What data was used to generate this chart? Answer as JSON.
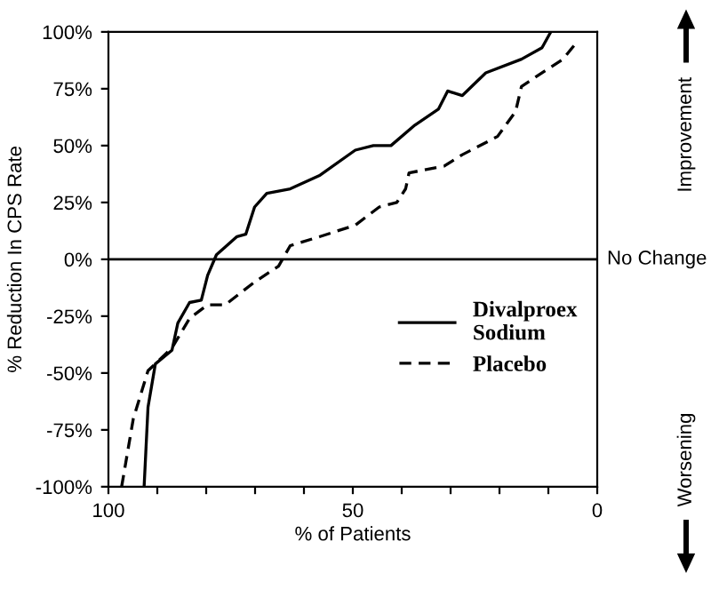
{
  "chart_data": {
    "type": "line",
    "xlabel": "% of Patients",
    "ylabel": "% Reduction In CPS Rate",
    "xlim": [
      100,
      0
    ],
    "xticks": [
      100,
      {
        "value": 90,
        "label": null
      },
      {
        "value": 80,
        "label": null
      },
      {
        "value": 70,
        "label": null
      },
      {
        "value": 60,
        "label": null
      },
      50,
      {
        "value": 40,
        "label": null
      },
      {
        "value": 30,
        "label": null
      },
      {
        "value": 20,
        "label": null
      },
      {
        "value": 10,
        "label": null
      },
      0
    ],
    "ylim": [
      -100,
      100
    ],
    "yticks": [
      {
        "value": -100,
        "label": "-100%"
      },
      {
        "value": -75,
        "label": "-75%"
      },
      {
        "value": -50,
        "label": "-50%"
      },
      {
        "value": -25,
        "label": "-25%"
      },
      {
        "value": 0,
        "label": "0%"
      },
      {
        "value": 25,
        "label": "25%"
      },
      {
        "value": 50,
        "label": "50%"
      },
      {
        "value": 75,
        "label": "75%"
      },
      {
        "value": 100,
        "label": "100%"
      }
    ],
    "grid": false,
    "legend": "bottom right",
    "marker": "none",
    "ref_lines": [
      {
        "axis": "y",
        "value": 0,
        "label": "No Change",
        "color": "#000000"
      }
    ],
    "annotations": [
      "Improvement",
      "Worsening"
    ],
    "series": [
      {
        "name": "Divalproex\nSodium",
        "color": "#000000",
        "line_style": "solid",
        "x": [
          92.7,
          91.9,
          90.4,
          87.0,
          85.8,
          83.4,
          81.0,
          79.7,
          77.9,
          73.7,
          71.9,
          70.1,
          67.6,
          62.8,
          56.7,
          49.5,
          45.8,
          42.2,
          37.3,
          32.5,
          30.6,
          27.6,
          22.8,
          15.5,
          11.3,
          9.5
        ],
        "values": [
          -100,
          -65,
          -46,
          -40,
          -28,
          -19,
          -18,
          -7,
          2,
          10,
          11,
          23,
          29,
          31,
          37,
          48,
          50,
          50,
          59,
          66,
          74,
          72,
          82,
          88,
          93,
          100
        ]
      },
      {
        "name": "Placebo",
        "color": "#000000",
        "line_style": "dashed",
        "x": [
          97.3,
          94.9,
          91.9,
          87.0,
          83.4,
          79.7,
          76.1,
          70.1,
          65.2,
          62.8,
          56.7,
          49.5,
          44.6,
          41.0,
          39.2,
          38.5,
          31.3,
          27.6,
          20.4,
          16.7,
          15.5,
          10.6,
          7.0,
          4.0
        ],
        "values": [
          -100,
          -70,
          -49,
          -39,
          -26,
          -20,
          -20,
          -10,
          -3,
          6,
          10,
          15,
          23,
          25,
          31,
          38,
          41,
          46,
          54,
          65,
          76,
          83,
          88,
          96
        ]
      }
    ]
  }
}
